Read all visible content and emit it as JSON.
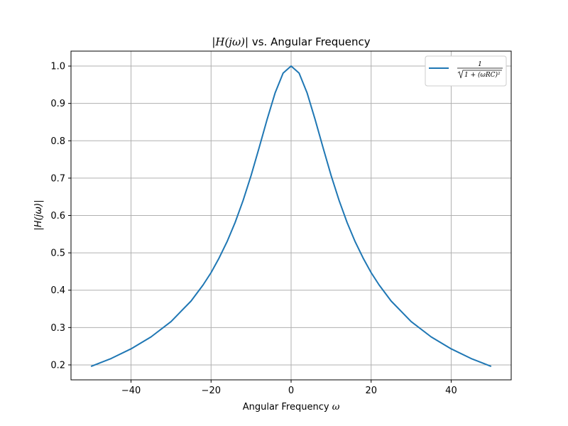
{
  "chart_data": {
    "type": "line",
    "title_prefix": "|H(jω)|",
    "title_suffix": " vs. Angular Frequency",
    "xlabel_text": "Angular Frequency ",
    "xlabel_symbol": "ω",
    "ylabel": "|H(jω)|",
    "xlim": [
      -55,
      55
    ],
    "ylim": [
      0.16,
      1.04
    ],
    "x_ticks": [
      -40,
      -20,
      0,
      20,
      40
    ],
    "x_tick_labels": [
      "−40",
      "−20",
      "0",
      "20",
      "40"
    ],
    "y_ticks": [
      0.2,
      0.3,
      0.4,
      0.5,
      0.6,
      0.7,
      0.8,
      0.9,
      1.0
    ],
    "y_tick_labels": [
      "0.2",
      "0.3",
      "0.4",
      "0.5",
      "0.6",
      "0.7",
      "0.8",
      "0.9",
      "1.0"
    ],
    "grid": true,
    "legend_position": "top-right",
    "legend": {
      "numerator": "1",
      "denominator": "1 + (ωRC)²"
    },
    "series": [
      {
        "color": "#1f77b4",
        "x": [
          -50,
          -45,
          -40,
          -35,
          -30,
          -25,
          -22,
          -20,
          -18,
          -16,
          -14,
          -12,
          -10,
          -8,
          -6,
          -4,
          -2,
          0,
          2,
          4,
          6,
          8,
          10,
          12,
          14,
          16,
          18,
          20,
          22,
          25,
          30,
          35,
          40,
          45,
          50
        ],
        "y": [
          0.196,
          0.217,
          0.243,
          0.275,
          0.316,
          0.371,
          0.414,
          0.447,
          0.486,
          0.53,
          0.581,
          0.64,
          0.707,
          0.781,
          0.857,
          0.928,
          0.981,
          1.0,
          0.981,
          0.928,
          0.857,
          0.781,
          0.707,
          0.64,
          0.581,
          0.53,
          0.486,
          0.447,
          0.414,
          0.371,
          0.316,
          0.275,
          0.243,
          0.217,
          0.196
        ]
      }
    ]
  }
}
